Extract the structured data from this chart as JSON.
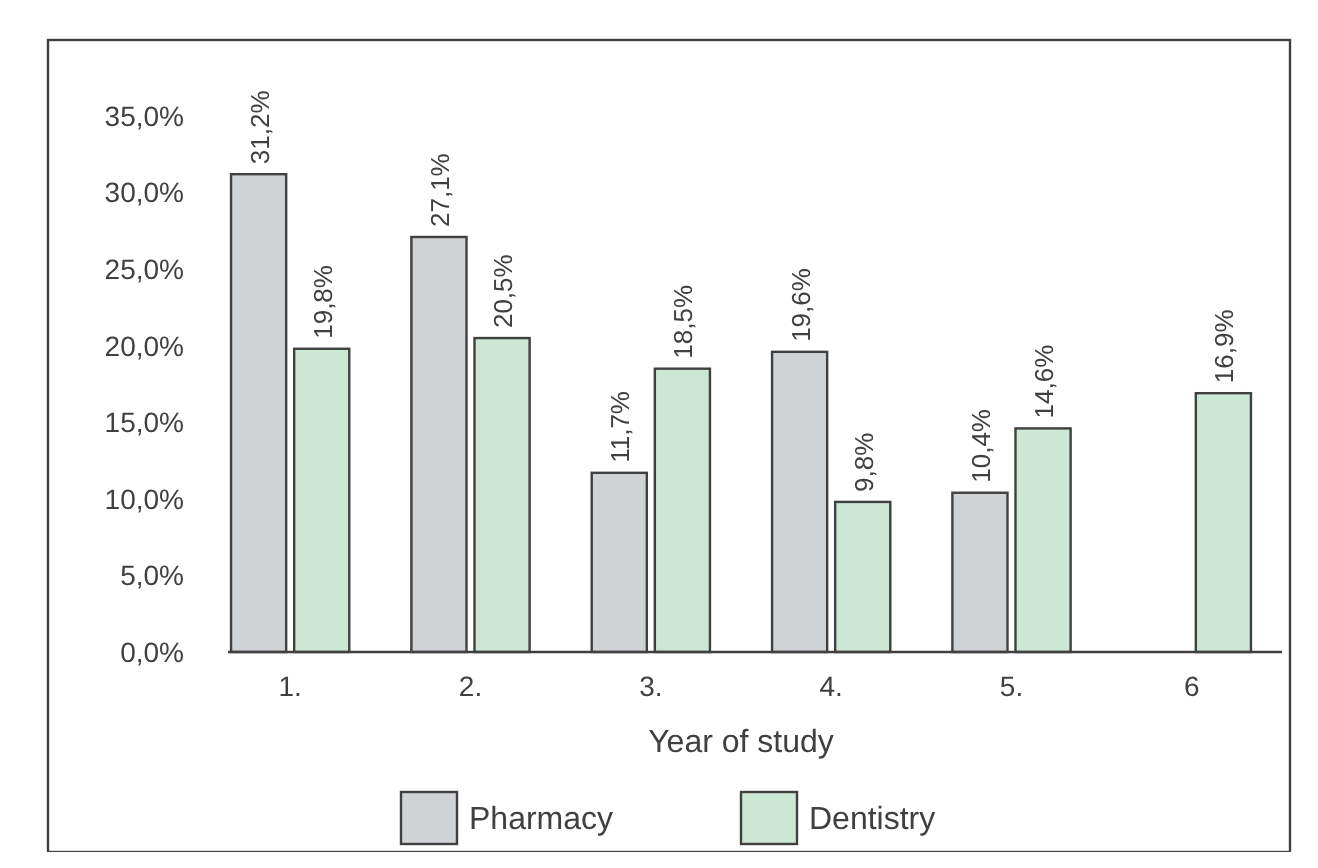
{
  "chart_data": {
    "type": "bar",
    "xlabel": "Year of study",
    "categories": [
      "1.",
      "2.",
      "3.",
      "4.",
      "5.",
      "6"
    ],
    "series": [
      {
        "name": "Pharmacy",
        "color": "#d0d3d6",
        "values": [
          31.2,
          27.1,
          11.7,
          19.6,
          10.4,
          null
        ],
        "value_labels": [
          "31,2%",
          "27,1%",
          "11,7%",
          "19,6%",
          "10,4%",
          null
        ]
      },
      {
        "name": "Dentistry",
        "color": "#cde7d5",
        "values": [
          19.8,
          20.5,
          18.5,
          9.8,
          14.6,
          16.9
        ],
        "value_labels": [
          "19,8%",
          "20,5%",
          "18,5%",
          "9,8%",
          "14,6%",
          "16,9%"
        ]
      }
    ],
    "ylim": [
      0,
      35
    ],
    "yticks": [
      {
        "value": 0,
        "label": "0,0%"
      },
      {
        "value": 5,
        "label": "5,0%"
      },
      {
        "value": 10,
        "label": "10,0%"
      },
      {
        "value": 15,
        "label": "15,0%"
      },
      {
        "value": 20,
        "label": "20,0%"
      },
      {
        "value": 25,
        "label": "25,0%"
      },
      {
        "value": 30,
        "label": "30,0%"
      },
      {
        "value": 35,
        "label": "35,0%"
      }
    ],
    "grid": false,
    "legend": "bottom"
  }
}
